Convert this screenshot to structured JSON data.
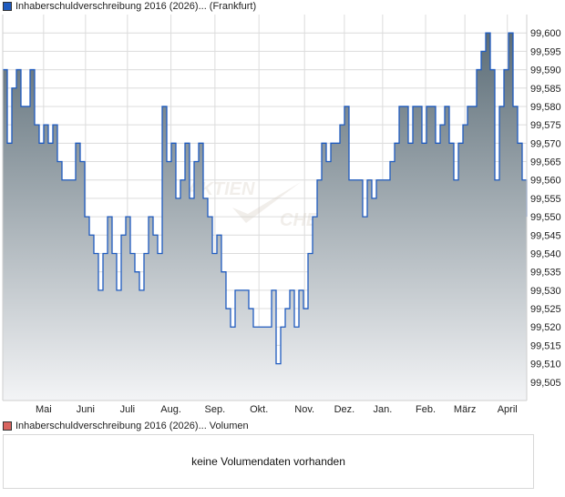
{
  "price_legend": {
    "label": "Inhaberschuldverschreibung 2016 (2026)... (Frankfurt)",
    "color": "#1f5bbf"
  },
  "volume_legend": {
    "label": "Inhaberschuldverschreibung 2016 (2026)... Volumen",
    "color": "#d9645f"
  },
  "volume_panel": {
    "message": "keine Volumendaten vorhanden"
  },
  "watermark": {
    "line1": "AKTIEN",
    "line2": "CHECK"
  },
  "chart_data": {
    "type": "area",
    "title": "Inhaberschuldverschreibung 2016 (2026)... (Frankfurt)",
    "xlabel": "",
    "ylabel": "",
    "step": true,
    "ylim": [
      99.5,
      99.605
    ],
    "yticks": [
      99.505,
      99.51,
      99.515,
      99.52,
      99.525,
      99.53,
      99.535,
      99.54,
      99.545,
      99.55,
      99.555,
      99.56,
      99.565,
      99.57,
      99.575,
      99.58,
      99.585,
      99.59,
      99.595,
      99.6
    ],
    "ytick_labels": [
      "99,505",
      "99,510",
      "99,515",
      "99,520",
      "99,525",
      "99,530",
      "99,535",
      "99,540",
      "99,545",
      "99,550",
      "99,555",
      "99,560",
      "99,565",
      "99,570",
      "99,575",
      "99,580",
      "99,585",
      "99,590",
      "99,595",
      "99,600"
    ],
    "xticks": [
      {
        "label": "Mai",
        "pos": 0.078
      },
      {
        "label": "Juni",
        "pos": 0.158
      },
      {
        "label": "Juli",
        "pos": 0.238
      },
      {
        "label": "Aug.",
        "pos": 0.321
      },
      {
        "label": "Sep.",
        "pos": 0.405
      },
      {
        "label": "Okt.",
        "pos": 0.489
      },
      {
        "label": "Nov.",
        "pos": 0.576
      },
      {
        "label": "Dez.",
        "pos": 0.652
      },
      {
        "label": "Jan.",
        "pos": 0.725
      },
      {
        "label": "Feb.",
        "pos": 0.807
      },
      {
        "label": "März",
        "pos": 0.882
      },
      {
        "label": "April",
        "pos": 0.963
      }
    ],
    "grid": true,
    "colors": {
      "line": "#1f5bbf",
      "fill_top": "#5c6d77",
      "fill_bottom": "#f3f4f6",
      "grid": "#dcdcdc"
    },
    "values": [
      99.59,
      99.57,
      99.585,
      99.59,
      99.58,
      99.58,
      99.59,
      99.575,
      99.57,
      99.575,
      99.57,
      99.575,
      99.565,
      99.56,
      99.56,
      99.56,
      99.57,
      99.565,
      99.55,
      99.545,
      99.54,
      99.53,
      99.54,
      99.55,
      99.54,
      99.53,
      99.545,
      99.55,
      99.54,
      99.535,
      99.53,
      99.54,
      99.55,
      99.545,
      99.54,
      99.58,
      99.565,
      99.57,
      99.555,
      99.56,
      99.57,
      99.555,
      99.565,
      99.57,
      99.555,
      99.55,
      99.54,
      99.545,
      99.535,
      99.525,
      99.52,
      99.53,
      99.53,
      99.53,
      99.525,
      99.52,
      99.52,
      99.52,
      99.52,
      99.53,
      99.51,
      99.52,
      99.525,
      99.53,
      99.52,
      99.53,
      99.525,
      99.54,
      99.55,
      99.56,
      99.57,
      99.565,
      99.57,
      99.57,
      99.575,
      99.58,
      99.56,
      99.56,
      99.56,
      99.55,
      99.56,
      99.555,
      99.56,
      99.56,
      99.56,
      99.565,
      99.57,
      99.58,
      99.58,
      99.57,
      99.58,
      99.58,
      99.57,
      99.58,
      99.58,
      99.57,
      99.575,
      99.58,
      99.57,
      99.56,
      99.57,
      99.575,
      99.58,
      99.58,
      99.59,
      99.595,
      99.6,
      99.59,
      99.56,
      99.58,
      99.59,
      99.6,
      99.58,
      99.57,
      99.56,
      99.55
    ]
  }
}
